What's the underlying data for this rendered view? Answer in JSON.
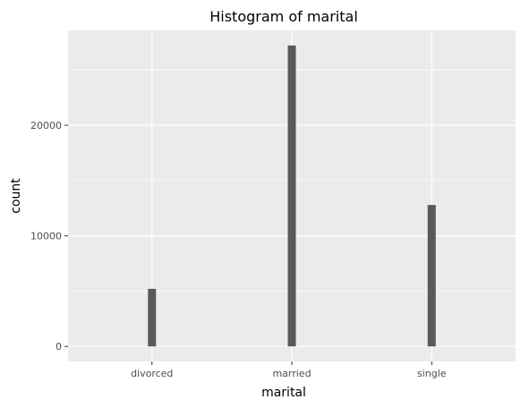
{
  "chart_data": {
    "type": "bar",
    "title": "Histogram of marital",
    "xlabel": "marital",
    "ylabel": "count",
    "categories": [
      "divorced",
      "married",
      "single"
    ],
    "values": [
      5207,
      27214,
      12790
    ],
    "ylim": [
      -1360,
      28575
    ],
    "yticks": [
      0,
      10000,
      20000
    ],
    "ytick_labels": [
      "0",
      "10000",
      "20000"
    ],
    "grid": true,
    "legend": "none",
    "colors": {
      "panel": "#ebebeb",
      "grid_major": "#ffffff",
      "bar": "#595959",
      "tick": "#333333"
    }
  }
}
